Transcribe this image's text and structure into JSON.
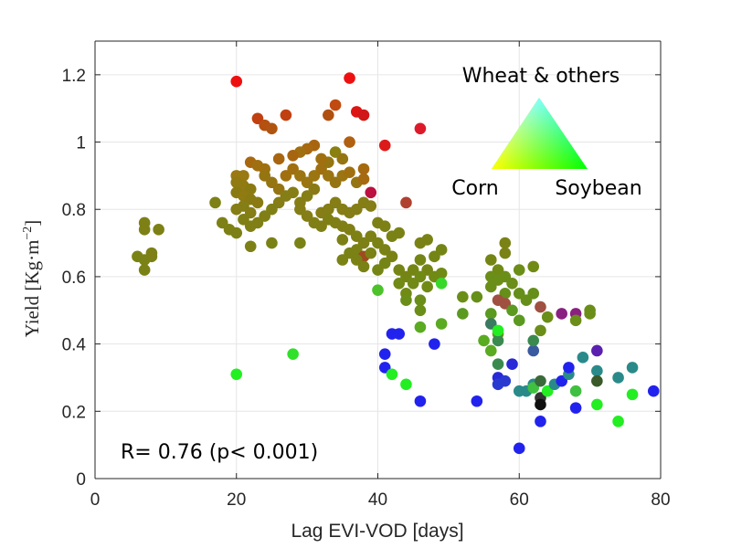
{
  "chart_data": {
    "type": "scatter",
    "xlabel": "Lag EVI-VOD [days]",
    "ylabel": "Yield [Kg·m",
    "ylabel_sup": "−2",
    "ylabel_close": "]",
    "xlim": [
      0,
      80
    ],
    "ylim": [
      0,
      1.3
    ],
    "x_ticks": [
      0,
      20,
      40,
      60,
      80
    ],
    "x_tick_labels": [
      "0",
      "20",
      "40",
      "60",
      "80"
    ],
    "y_ticks": [
      0,
      0.2,
      0.4,
      0.6,
      0.8,
      1.0,
      1.2
    ],
    "y_tick_labels": [
      "0",
      "0.2",
      "0.4",
      "0.6",
      "0.8",
      "1",
      "1.2"
    ],
    "grid": true,
    "annotation": "R= 0.76 (p< 0.001)",
    "legend": {
      "type": "ternary color triangle",
      "placement": "top-right",
      "top_label": "Wheat & others",
      "left_label": "Corn",
      "right_label": "Soybean",
      "colors": {
        "corn": "#ff0000",
        "soybean": "#00ff00",
        "wheat_others": "#0000ff"
      }
    },
    "points": [
      {
        "x": 20,
        "y": 1.18,
        "c": "#ee1010"
      },
      {
        "x": 36,
        "y": 1.19,
        "c": "#ee1010"
      },
      {
        "x": 46,
        "y": 1.04,
        "c": "#dd1a2a"
      },
      {
        "x": 41,
        "y": 0.99,
        "c": "#dd1a1a"
      },
      {
        "x": 37,
        "y": 1.09,
        "c": "#dd1515"
      },
      {
        "x": 38,
        "y": 1.08,
        "c": "#d01818"
      },
      {
        "x": 39,
        "y": 0.85,
        "c": "#bb1040"
      },
      {
        "x": 34,
        "y": 1.11,
        "c": "#c04a10"
      },
      {
        "x": 33,
        "y": 1.08,
        "c": "#b05010"
      },
      {
        "x": 27,
        "y": 1.08,
        "c": "#c04010"
      },
      {
        "x": 23,
        "y": 1.07,
        "c": "#c04010"
      },
      {
        "x": 24,
        "y": 1.05,
        "c": "#b55010"
      },
      {
        "x": 25,
        "y": 1.04,
        "c": "#b05510"
      },
      {
        "x": 36,
        "y": 1.0,
        "c": "#b06010"
      },
      {
        "x": 31,
        "y": 0.99,
        "c": "#a86510"
      },
      {
        "x": 30,
        "y": 0.98,
        "c": "#a86810"
      },
      {
        "x": 29,
        "y": 0.97,
        "c": "#a07010"
      },
      {
        "x": 28,
        "y": 0.96,
        "c": "#a86510"
      },
      {
        "x": 26,
        "y": 0.95,
        "c": "#a86510"
      },
      {
        "x": 22,
        "y": 0.94,
        "c": "#a86810"
      },
      {
        "x": 23,
        "y": 0.93,
        "c": "#a07010"
      },
      {
        "x": 24,
        "y": 0.92,
        "c": "#a07010"
      },
      {
        "x": 21,
        "y": 0.9,
        "c": "#9a7812"
      },
      {
        "x": 20,
        "y": 0.9,
        "c": "#9a7812"
      },
      {
        "x": 20,
        "y": 0.88,
        "c": "#907a12"
      },
      {
        "x": 21,
        "y": 0.87,
        "c": "#907a12"
      },
      {
        "x": 22,
        "y": 0.86,
        "c": "#8a7a12"
      },
      {
        "x": 20,
        "y": 0.85,
        "c": "#8a7a12"
      },
      {
        "x": 21,
        "y": 0.84,
        "c": "#907a12"
      },
      {
        "x": 22,
        "y": 0.83,
        "c": "#8a7a12"
      },
      {
        "x": 23,
        "y": 0.82,
        "c": "#8a7a12"
      },
      {
        "x": 21,
        "y": 0.81,
        "c": "#857d15"
      },
      {
        "x": 20,
        "y": 0.8,
        "c": "#857d15"
      },
      {
        "x": 22,
        "y": 0.79,
        "c": "#857d15"
      },
      {
        "x": 24,
        "y": 0.9,
        "c": "#957512"
      },
      {
        "x": 25,
        "y": 0.88,
        "c": "#957512"
      },
      {
        "x": 26,
        "y": 0.86,
        "c": "#957512"
      },
      {
        "x": 27,
        "y": 0.9,
        "c": "#a07010"
      },
      {
        "x": 28,
        "y": 0.92,
        "c": "#a07010"
      },
      {
        "x": 29,
        "y": 0.9,
        "c": "#9a7512"
      },
      {
        "x": 30,
        "y": 0.88,
        "c": "#9a7512"
      },
      {
        "x": 31,
        "y": 0.9,
        "c": "#9a7512"
      },
      {
        "x": 32,
        "y": 0.92,
        "c": "#a07010"
      },
      {
        "x": 33,
        "y": 0.9,
        "c": "#9a7512"
      },
      {
        "x": 34,
        "y": 0.88,
        "c": "#957512"
      },
      {
        "x": 35,
        "y": 0.9,
        "c": "#9a7512"
      },
      {
        "x": 36,
        "y": 0.91,
        "c": "#a07010"
      },
      {
        "x": 37,
        "y": 0.88,
        "c": "#957512"
      },
      {
        "x": 38,
        "y": 0.92,
        "c": "#a56a10"
      },
      {
        "x": 38,
        "y": 0.89,
        "c": "#a56a10"
      },
      {
        "x": 34,
        "y": 0.97,
        "c": "#8a8010"
      },
      {
        "x": 35,
        "y": 0.95,
        "c": "#957512"
      },
      {
        "x": 33,
        "y": 0.94,
        "c": "#957512"
      },
      {
        "x": 32,
        "y": 0.95,
        "c": "#a07010"
      },
      {
        "x": 31,
        "y": 0.86,
        "c": "#8a7a15"
      },
      {
        "x": 30,
        "y": 0.84,
        "c": "#857d15"
      },
      {
        "x": 29,
        "y": 0.82,
        "c": "#857d15"
      },
      {
        "x": 28,
        "y": 0.85,
        "c": "#857d15"
      },
      {
        "x": 27,
        "y": 0.84,
        "c": "#857d15"
      },
      {
        "x": 26,
        "y": 0.82,
        "c": "#857d15"
      },
      {
        "x": 25,
        "y": 0.8,
        "c": "#807f15"
      },
      {
        "x": 24,
        "y": 0.78,
        "c": "#807f15"
      },
      {
        "x": 23,
        "y": 0.76,
        "c": "#807f15"
      },
      {
        "x": 22,
        "y": 0.75,
        "c": "#807f15"
      },
      {
        "x": 21,
        "y": 0.77,
        "c": "#807f15"
      },
      {
        "x": 20,
        "y": 0.73,
        "c": "#7d8015"
      },
      {
        "x": 19,
        "y": 0.74,
        "c": "#7d8015"
      },
      {
        "x": 18,
        "y": 0.76,
        "c": "#7d8015"
      },
      {
        "x": 17,
        "y": 0.82,
        "c": "#7d8015"
      },
      {
        "x": 22,
        "y": 0.69,
        "c": "#7d8015"
      },
      {
        "x": 25,
        "y": 0.7,
        "c": "#7a8215"
      },
      {
        "x": 29,
        "y": 0.7,
        "c": "#7a8215"
      },
      {
        "x": 20,
        "y": 0.31,
        "c": "#22f022"
      },
      {
        "x": 28,
        "y": 0.37,
        "c": "#30e02a"
      },
      {
        "x": 8,
        "y": 0.67,
        "c": "#7d8015"
      },
      {
        "x": 7,
        "y": 0.76,
        "c": "#7d8015"
      },
      {
        "x": 7,
        "y": 0.74,
        "c": "#7d8015"
      },
      {
        "x": 9,
        "y": 0.74,
        "c": "#7d8015"
      },
      {
        "x": 6,
        "y": 0.66,
        "c": "#7a8215"
      },
      {
        "x": 7,
        "y": 0.65,
        "c": "#7a8215"
      },
      {
        "x": 7,
        "y": 0.62,
        "c": "#7a8215"
      },
      {
        "x": 8,
        "y": 0.66,
        "c": "#7d8015"
      },
      {
        "x": 29,
        "y": 0.8,
        "c": "#857d15"
      },
      {
        "x": 30,
        "y": 0.78,
        "c": "#857d15"
      },
      {
        "x": 32,
        "y": 0.79,
        "c": "#857d15"
      },
      {
        "x": 33,
        "y": 0.8,
        "c": "#857d15"
      },
      {
        "x": 34,
        "y": 0.82,
        "c": "#857d15"
      },
      {
        "x": 35,
        "y": 0.8,
        "c": "#857d15"
      },
      {
        "x": 36,
        "y": 0.79,
        "c": "#857d15"
      },
      {
        "x": 37,
        "y": 0.8,
        "c": "#857d15"
      },
      {
        "x": 38,
        "y": 0.82,
        "c": "#857d15"
      },
      {
        "x": 39,
        "y": 0.81,
        "c": "#857d15"
      },
      {
        "x": 31,
        "y": 0.76,
        "c": "#807f15"
      },
      {
        "x": 32,
        "y": 0.75,
        "c": "#807f15"
      },
      {
        "x": 33,
        "y": 0.77,
        "c": "#807f15"
      },
      {
        "x": 34,
        "y": 0.76,
        "c": "#807f15"
      },
      {
        "x": 35,
        "y": 0.75,
        "c": "#807f15"
      },
      {
        "x": 36,
        "y": 0.74,
        "c": "#807f15"
      },
      {
        "x": 35,
        "y": 0.71,
        "c": "#7d8015"
      },
      {
        "x": 37,
        "y": 0.72,
        "c": "#7d8015"
      },
      {
        "x": 38,
        "y": 0.7,
        "c": "#7d8015"
      },
      {
        "x": 39,
        "y": 0.72,
        "c": "#7d8015"
      },
      {
        "x": 40,
        "y": 0.76,
        "c": "#7d8015"
      },
      {
        "x": 41,
        "y": 0.75,
        "c": "#7d8015"
      },
      {
        "x": 42,
        "y": 0.72,
        "c": "#7a8215"
      },
      {
        "x": 43,
        "y": 0.73,
        "c": "#7a8215"
      },
      {
        "x": 40,
        "y": 0.7,
        "c": "#7a8215"
      },
      {
        "x": 41,
        "y": 0.68,
        "c": "#7a8215"
      },
      {
        "x": 42,
        "y": 0.66,
        "c": "#7a8215"
      },
      {
        "x": 36,
        "y": 0.67,
        "c": "#7a8215"
      },
      {
        "x": 37,
        "y": 0.68,
        "c": "#7a8215"
      },
      {
        "x": 38,
        "y": 0.66,
        "c": "#a04a20"
      },
      {
        "x": 39,
        "y": 0.67,
        "c": "#7a8215"
      },
      {
        "x": 40,
        "y": 0.62,
        "c": "#758515"
      },
      {
        "x": 41,
        "y": 0.64,
        "c": "#758515"
      },
      {
        "x": 43,
        "y": 0.62,
        "c": "#758515"
      },
      {
        "x": 44,
        "y": 0.6,
        "c": "#758515"
      },
      {
        "x": 45,
        "y": 0.62,
        "c": "#758515"
      },
      {
        "x": 46,
        "y": 0.65,
        "c": "#758515"
      },
      {
        "x": 46,
        "y": 0.7,
        "c": "#7a8215"
      },
      {
        "x": 47,
        "y": 0.71,
        "c": "#7a8215"
      },
      {
        "x": 49,
        "y": 0.68,
        "c": "#758515"
      },
      {
        "x": 48,
        "y": 0.66,
        "c": "#758515"
      },
      {
        "x": 47,
        "y": 0.62,
        "c": "#758515"
      },
      {
        "x": 48,
        "y": 0.6,
        "c": "#708a15"
      },
      {
        "x": 49,
        "y": 0.61,
        "c": "#708a15"
      },
      {
        "x": 43,
        "y": 0.58,
        "c": "#708a15"
      },
      {
        "x": 44,
        "y": 0.55,
        "c": "#708a15"
      },
      {
        "x": 45,
        "y": 0.58,
        "c": "#708a15"
      },
      {
        "x": 46,
        "y": 0.6,
        "c": "#708a15"
      },
      {
        "x": 47,
        "y": 0.57,
        "c": "#708a15"
      },
      {
        "x": 44,
        "y": 0.53,
        "c": "#6a8e18"
      },
      {
        "x": 46,
        "y": 0.53,
        "c": "#6a8e18"
      },
      {
        "x": 46,
        "y": 0.5,
        "c": "#6a8e18"
      },
      {
        "x": 40,
        "y": 0.56,
        "c": "#4cc22a"
      },
      {
        "x": 49,
        "y": 0.58,
        "c": "#38d82a"
      },
      {
        "x": 38,
        "y": 0.63,
        "c": "#7a8215"
      },
      {
        "x": 37,
        "y": 0.65,
        "c": "#7a8215"
      },
      {
        "x": 35,
        "y": 0.65,
        "c": "#7a8215"
      },
      {
        "x": 44,
        "y": 0.82,
        "c": "#b04030"
      },
      {
        "x": 46,
        "y": 0.45,
        "c": "#5aaa22"
      },
      {
        "x": 49,
        "y": 0.46,
        "c": "#5aaa22"
      },
      {
        "x": 48,
        "y": 0.4,
        "c": "#2222ee"
      },
      {
        "x": 42,
        "y": 0.43,
        "c": "#2222ee"
      },
      {
        "x": 43,
        "y": 0.43,
        "c": "#2222ee"
      },
      {
        "x": 41,
        "y": 0.37,
        "c": "#2222ee"
      },
      {
        "x": 41,
        "y": 0.33,
        "c": "#2222ee"
      },
      {
        "x": 42,
        "y": 0.31,
        "c": "#22ee22"
      },
      {
        "x": 44,
        "y": 0.28,
        "c": "#22ee22"
      },
      {
        "x": 46,
        "y": 0.23,
        "c": "#2222ee"
      },
      {
        "x": 54,
        "y": 0.23,
        "c": "#2222ee"
      },
      {
        "x": 52,
        "y": 0.54,
        "c": "#6a8e18"
      },
      {
        "x": 52,
        "y": 0.49,
        "c": "#5a9a20"
      },
      {
        "x": 54,
        "y": 0.54,
        "c": "#658f18"
      },
      {
        "x": 56,
        "y": 0.65,
        "c": "#758515"
      },
      {
        "x": 56,
        "y": 0.6,
        "c": "#6a8e18"
      },
      {
        "x": 56,
        "y": 0.57,
        "c": "#6a8e18"
      },
      {
        "x": 57,
        "y": 0.62,
        "c": "#708a15"
      },
      {
        "x": 57,
        "y": 0.59,
        "c": "#6a8e18"
      },
      {
        "x": 58,
        "y": 0.7,
        "c": "#7a8215"
      },
      {
        "x": 58,
        "y": 0.67,
        "c": "#7a8215"
      },
      {
        "x": 58,
        "y": 0.6,
        "c": "#6a8e18"
      },
      {
        "x": 58,
        "y": 0.55,
        "c": "#658f18"
      },
      {
        "x": 57,
        "y": 0.53,
        "c": "#a05040"
      },
      {
        "x": 58,
        "y": 0.52,
        "c": "#a05040"
      },
      {
        "x": 59,
        "y": 0.58,
        "c": "#6a8e18"
      },
      {
        "x": 60,
        "y": 0.62,
        "c": "#6a8e18"
      },
      {
        "x": 60,
        "y": 0.55,
        "c": "#658f18"
      },
      {
        "x": 61,
        "y": 0.53,
        "c": "#658f18"
      },
      {
        "x": 60,
        "y": 0.47,
        "c": "#5a9a20"
      },
      {
        "x": 59,
        "y": 0.5,
        "c": "#5a9a20"
      },
      {
        "x": 62,
        "y": 0.63,
        "c": "#708a15"
      },
      {
        "x": 62,
        "y": 0.55,
        "c": "#658f18"
      },
      {
        "x": 63,
        "y": 0.51,
        "c": "#a05040"
      },
      {
        "x": 64,
        "y": 0.48,
        "c": "#6a8e18"
      },
      {
        "x": 63,
        "y": 0.44,
        "c": "#6a8e18"
      },
      {
        "x": 56,
        "y": 0.49,
        "c": "#5a9a20"
      },
      {
        "x": 56,
        "y": 0.46,
        "c": "#3a7a60"
      },
      {
        "x": 57,
        "y": 0.43,
        "c": "#6a8e18"
      },
      {
        "x": 57,
        "y": 0.41,
        "c": "#3a8a50"
      },
      {
        "x": 55,
        "y": 0.41,
        "c": "#5aaa22"
      },
      {
        "x": 56,
        "y": 0.38,
        "c": "#5aaa22"
      },
      {
        "x": 57,
        "y": 0.34,
        "c": "#3a8a50"
      },
      {
        "x": 57,
        "y": 0.3,
        "c": "#2828d8"
      },
      {
        "x": 57,
        "y": 0.28,
        "c": "#2a3ad0"
      },
      {
        "x": 58,
        "y": 0.29,
        "c": "#2a3ad0"
      },
      {
        "x": 57,
        "y": 0.44,
        "c": "#22ee22"
      },
      {
        "x": 59,
        "y": 0.34,
        "c": "#2828d8"
      },
      {
        "x": 60,
        "y": 0.26,
        "c": "#2a8a8a"
      },
      {
        "x": 61,
        "y": 0.26,
        "c": "#2a8a8a"
      },
      {
        "x": 62,
        "y": 0.28,
        "c": "#2a8a8a"
      },
      {
        "x": 62,
        "y": 0.27,
        "c": "#40c040"
      },
      {
        "x": 62,
        "y": 0.38,
        "c": "#3a5aa0"
      },
      {
        "x": 62,
        "y": 0.41,
        "c": "#3a8a50"
      },
      {
        "x": 63,
        "y": 0.29,
        "c": "#3a6a3a"
      },
      {
        "x": 63,
        "y": 0.24,
        "c": "#333333"
      },
      {
        "x": 63,
        "y": 0.22,
        "c": "#101010"
      },
      {
        "x": 63,
        "y": 0.17,
        "c": "#2222ee"
      },
      {
        "x": 60,
        "y": 0.09,
        "c": "#2222ee"
      },
      {
        "x": 64,
        "y": 0.26,
        "c": "#22ee22"
      },
      {
        "x": 65,
        "y": 0.28,
        "c": "#2a8a8a"
      },
      {
        "x": 66,
        "y": 0.29,
        "c": "#2222ee"
      },
      {
        "x": 67,
        "y": 0.31,
        "c": "#2a8a8a"
      },
      {
        "x": 67,
        "y": 0.33,
        "c": "#2222ee"
      },
      {
        "x": 66,
        "y": 0.49,
        "c": "#8a2080"
      },
      {
        "x": 68,
        "y": 0.49,
        "c": "#8a2080"
      },
      {
        "x": 68,
        "y": 0.47,
        "c": "#6a8e18"
      },
      {
        "x": 68,
        "y": 0.26,
        "c": "#40c040"
      },
      {
        "x": 68,
        "y": 0.21,
        "c": "#2222ee"
      },
      {
        "x": 69,
        "y": 0.36,
        "c": "#2a8a8a"
      },
      {
        "x": 70,
        "y": 0.5,
        "c": "#6a8e18"
      },
      {
        "x": 70,
        "y": 0.49,
        "c": "#6a8e18"
      },
      {
        "x": 71,
        "y": 0.38,
        "c": "#5a20b0"
      },
      {
        "x": 71,
        "y": 0.32,
        "c": "#2a8a8a"
      },
      {
        "x": 71,
        "y": 0.29,
        "c": "#3a5a2a"
      },
      {
        "x": 71,
        "y": 0.22,
        "c": "#22ee22"
      },
      {
        "x": 74,
        "y": 0.3,
        "c": "#2a8a8a"
      },
      {
        "x": 74,
        "y": 0.17,
        "c": "#22ee22"
      },
      {
        "x": 76,
        "y": 0.33,
        "c": "#2a8a8a"
      },
      {
        "x": 76,
        "y": 0.25,
        "c": "#22ee22"
      },
      {
        "x": 79,
        "y": 0.26,
        "c": "#2222ee"
      }
    ]
  }
}
